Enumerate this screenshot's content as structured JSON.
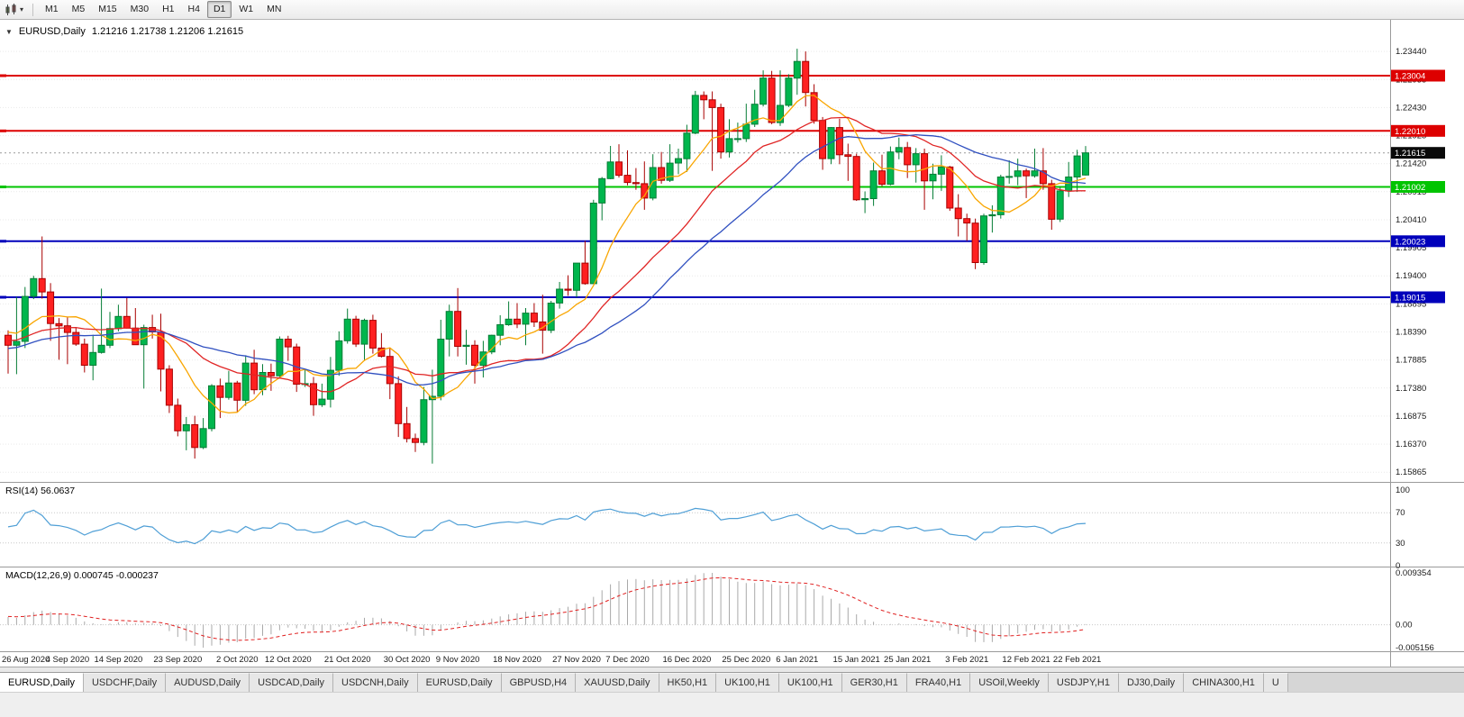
{
  "toolbar": {
    "chart_icon": "candlestick-chart",
    "dropdown_icon": "▾",
    "timeframes": [
      "M1",
      "M5",
      "M15",
      "M30",
      "H1",
      "H4",
      "D1",
      "W1",
      "MN"
    ],
    "active_timeframe": "D1"
  },
  "chart_header": {
    "menu_icon": "▼",
    "title": "EURUSD,Daily",
    "ohlc": "1.21216 1.21738 1.21206 1.21615"
  },
  "tab_bar": {
    "active_index": 0,
    "tabs": [
      "EURUSD,Daily",
      "USDCHF,Daily",
      "AUDUSD,Daily",
      "USDCAD,Daily",
      "USDCNH,Daily",
      "EURUSD,Daily",
      "GBPUSD,H4",
      "XAUUSD,Daily",
      "HK50,H1",
      "UK100,H1",
      "UK100,H1",
      "GER30,H1",
      "FRA40,H1",
      "USOil,Weekly",
      "USDJPY,H1",
      "DJ30,Daily",
      "CHINA300,H1",
      "U"
    ]
  },
  "chart_data": {
    "type": "candlestick",
    "title": "EURUSD,Daily",
    "ohlc_current": [
      1.21216,
      1.21738,
      1.21206,
      1.21615
    ],
    "ylim": [
      1.1569,
      1.2401
    ],
    "y_axis_labels": [
      "1.23440",
      "1.22935",
      "1.22430",
      "1.21925",
      "1.21420",
      "1.20915",
      "1.20410",
      "1.19905",
      "1.19400",
      "1.18895",
      "1.18390",
      "1.17885",
      "1.17380",
      "1.16875",
      "1.16370",
      "1.15865"
    ],
    "x_labels": [
      {
        "text": "26 Aug 2020",
        "bar": 0
      },
      {
        "text": "4 Sep 2020",
        "bar": 7
      },
      {
        "text": "14 Sep 2020",
        "bar": 13
      },
      {
        "text": "23 Sep 2020",
        "bar": 20
      },
      {
        "text": "2 Oct 2020",
        "bar": 27
      },
      {
        "text": "12 Oct 2020",
        "bar": 33
      },
      {
        "text": "21 Oct 2020",
        "bar": 40
      },
      {
        "text": "30 Oct 2020",
        "bar": 47
      },
      {
        "text": "9 Nov 2020",
        "bar": 53
      },
      {
        "text": "18 Nov 2020",
        "bar": 60
      },
      {
        "text": "27 Nov 2020",
        "bar": 67
      },
      {
        "text": "7 Dec 2020",
        "bar": 73
      },
      {
        "text": "16 Dec 2020",
        "bar": 80
      },
      {
        "text": "25 Dec 2020",
        "bar": 87
      },
      {
        "text": "6 Jan 2021",
        "bar": 93
      },
      {
        "text": "15 Jan 2021",
        "bar": 100
      },
      {
        "text": "25 Jan 2021",
        "bar": 106
      },
      {
        "text": "3 Feb 2021",
        "bar": 113
      },
      {
        "text": "12 Feb 2021",
        "bar": 120
      },
      {
        "text": "22 Feb 2021",
        "bar": 126
      }
    ],
    "candle_colors": {
      "up_fill": "#00b64d",
      "up_border": "#067d36",
      "down_fill": "#fe2020",
      "down_border": "#a80000"
    },
    "candles": [
      [
        1.1833,
        1.1842,
        1.1764,
        1.1815
      ],
      [
        1.1815,
        1.1902,
        1.1763,
        1.1822
      ],
      [
        1.1822,
        1.192,
        1.181,
        1.1903
      ],
      [
        1.1903,
        1.194,
        1.1898,
        1.1935
      ],
      [
        1.1935,
        1.2011,
        1.1899,
        1.1911
      ],
      [
        1.1911,
        1.1927,
        1.1823,
        1.1854
      ],
      [
        1.1854,
        1.1864,
        1.1789,
        1.185
      ],
      [
        1.185,
        1.1865,
        1.1781,
        1.1838
      ],
      [
        1.1838,
        1.1848,
        1.1814,
        1.1817
      ],
      [
        1.1817,
        1.1827,
        1.1766,
        1.1779
      ],
      [
        1.1779,
        1.1834,
        1.1752,
        1.1802
      ],
      [
        1.1802,
        1.1917,
        1.18,
        1.1815
      ],
      [
        1.1815,
        1.1875,
        1.181,
        1.1845
      ],
      [
        1.1845,
        1.1888,
        1.184,
        1.1867
      ],
      [
        1.1867,
        1.19,
        1.1845,
        1.1846
      ],
      [
        1.1846,
        1.1882,
        1.184,
        1.1816
      ],
      [
        1.1816,
        1.1852,
        1.1737,
        1.1847
      ],
      [
        1.1847,
        1.187,
        1.1827,
        1.1839
      ],
      [
        1.1839,
        1.1872,
        1.1732,
        1.1772
      ],
      [
        1.1772,
        1.1779,
        1.1693,
        1.1707
      ],
      [
        1.1707,
        1.1719,
        1.1651,
        1.1661
      ],
      [
        1.1661,
        1.1686,
        1.1626,
        1.1672
      ],
      [
        1.1672,
        1.1688,
        1.1611,
        1.1631
      ],
      [
        1.1631,
        1.1684,
        1.1628,
        1.1665
      ],
      [
        1.1665,
        1.1745,
        1.166,
        1.1742
      ],
      [
        1.1742,
        1.1755,
        1.1684,
        1.1721
      ],
      [
        1.1721,
        1.1769,
        1.1717,
        1.1747
      ],
      [
        1.1747,
        1.1751,
        1.1695,
        1.1716
      ],
      [
        1.1716,
        1.1797,
        1.1706,
        1.1783
      ],
      [
        1.1783,
        1.1807,
        1.1727,
        1.1735
      ],
      [
        1.1735,
        1.1781,
        1.1725,
        1.1766
      ],
      [
        1.1766,
        1.1782,
        1.1733,
        1.176
      ],
      [
        1.176,
        1.1831,
        1.1758,
        1.1826
      ],
      [
        1.1826,
        1.1832,
        1.1787,
        1.1812
      ],
      [
        1.1812,
        1.1818,
        1.1731,
        1.1745
      ],
      [
        1.1745,
        1.1772,
        1.174,
        1.1746
      ],
      [
        1.1746,
        1.1758,
        1.1688,
        1.1708
      ],
      [
        1.1708,
        1.1746,
        1.1704,
        1.1718
      ],
      [
        1.1718,
        1.1794,
        1.1703,
        1.177
      ],
      [
        1.177,
        1.184,
        1.176,
        1.1823
      ],
      [
        1.1823,
        1.1881,
        1.1818,
        1.1862
      ],
      [
        1.1862,
        1.1868,
        1.1812,
        1.1817
      ],
      [
        1.1817,
        1.1863,
        1.1787,
        1.186
      ],
      [
        1.186,
        1.187,
        1.18,
        1.181
      ],
      [
        1.181,
        1.1837,
        1.1793,
        1.1795
      ],
      [
        1.1795,
        1.1811,
        1.1718,
        1.1746
      ],
      [
        1.1746,
        1.1759,
        1.165,
        1.1674
      ],
      [
        1.1674,
        1.1704,
        1.164,
        1.1647
      ],
      [
        1.1647,
        1.1656,
        1.1623,
        1.164
      ],
      [
        1.164,
        1.174,
        1.1635,
        1.1717
      ],
      [
        1.1717,
        1.1771,
        1.1602,
        1.1723
      ],
      [
        1.1723,
        1.1861,
        1.1716,
        1.1826
      ],
      [
        1.1826,
        1.1888,
        1.1795,
        1.1876
      ],
      [
        1.1876,
        1.1918,
        1.1795,
        1.1813
      ],
      [
        1.1813,
        1.1843,
        1.178,
        1.1815
      ],
      [
        1.1815,
        1.1824,
        1.1746,
        1.1779
      ],
      [
        1.1779,
        1.1823,
        1.1757,
        1.1803
      ],
      [
        1.1803,
        1.1834,
        1.1799,
        1.1833
      ],
      [
        1.1833,
        1.1869,
        1.1815,
        1.1852
      ],
      [
        1.1852,
        1.1894,
        1.185,
        1.1862
      ],
      [
        1.1862,
        1.1891,
        1.1846,
        1.1853
      ],
      [
        1.1853,
        1.1882,
        1.1815,
        1.1873
      ],
      [
        1.1873,
        1.1891,
        1.1848,
        1.1857
      ],
      [
        1.1857,
        1.1906,
        1.18,
        1.1842
      ],
      [
        1.1842,
        1.1895,
        1.1837,
        1.1891
      ],
      [
        1.1891,
        1.1929,
        1.1881,
        1.1916
      ],
      [
        1.1916,
        1.1941,
        1.1904,
        1.1914
      ],
      [
        1.1914,
        1.1963,
        1.1901,
        1.1963
      ],
      [
        1.1963,
        1.2003,
        1.1924,
        1.1926
      ],
      [
        1.1926,
        1.2077,
        1.1926,
        1.2071
      ],
      [
        1.2071,
        1.2118,
        1.204,
        1.2115
      ],
      [
        1.2115,
        1.2174,
        1.2114,
        1.2145
      ],
      [
        1.2145,
        1.2177,
        1.2117,
        1.2121
      ],
      [
        1.2121,
        1.2166,
        1.2103,
        1.2108
      ],
      [
        1.2108,
        1.2134,
        1.2095,
        1.2106
      ],
      [
        1.2106,
        1.2146,
        1.2059,
        1.208
      ],
      [
        1.208,
        1.2159,
        1.2076,
        1.2135
      ],
      [
        1.2135,
        1.2163,
        1.2106,
        1.2112
      ],
      [
        1.2112,
        1.2177,
        1.2109,
        1.2143
      ],
      [
        1.2143,
        1.2169,
        1.2123,
        1.2151
      ],
      [
        1.2151,
        1.2212,
        1.2127,
        1.2197
      ],
      [
        1.2197,
        1.2273,
        1.2195,
        1.2265
      ],
      [
        1.2265,
        1.2272,
        1.2222,
        1.2257
      ],
      [
        1.2257,
        1.2272,
        1.2129,
        1.2243
      ],
      [
        1.2243,
        1.225,
        1.2151,
        1.2163
      ],
      [
        1.2163,
        1.2222,
        1.2153,
        1.2187
      ],
      [
        1.2187,
        1.2216,
        1.218,
        1.2187
      ],
      [
        1.2187,
        1.225,
        1.2181,
        1.2213
      ],
      [
        1.2213,
        1.2275,
        1.2208,
        1.2249
      ],
      [
        1.2249,
        1.231,
        1.2245,
        1.2296
      ],
      [
        1.2296,
        1.2309,
        1.2213,
        1.2216
      ],
      [
        1.2216,
        1.231,
        1.221,
        1.2247
      ],
      [
        1.2247,
        1.2303,
        1.2244,
        1.2296
      ],
      [
        1.2296,
        1.2349,
        1.2266,
        1.2326
      ],
      [
        1.2326,
        1.2344,
        1.2245,
        1.227
      ],
      [
        1.227,
        1.2285,
        1.2214,
        1.222
      ],
      [
        1.222,
        1.2226,
        1.2131,
        1.2151
      ],
      [
        1.2151,
        1.2208,
        1.2141,
        1.2207
      ],
      [
        1.2207,
        1.2223,
        1.2141,
        1.2158
      ],
      [
        1.2158,
        1.2178,
        1.2111,
        1.2155
      ],
      [
        1.2155,
        1.216,
        1.2075,
        1.2077
      ],
      [
        1.2077,
        1.2092,
        1.2053,
        1.2079
      ],
      [
        1.2079,
        1.2144,
        1.2066,
        1.2129
      ],
      [
        1.2129,
        1.2158,
        1.2101,
        1.2105
      ],
      [
        1.2105,
        1.2173,
        1.2103,
        1.2163
      ],
      [
        1.2163,
        1.2189,
        1.215,
        1.2171
      ],
      [
        1.2171,
        1.2181,
        1.2116,
        1.214
      ],
      [
        1.214,
        1.217,
        1.2108,
        1.216
      ],
      [
        1.216,
        1.2169,
        1.2059,
        1.2111
      ],
      [
        1.2111,
        1.2142,
        1.2078,
        1.2123
      ],
      [
        1.2123,
        1.2157,
        1.2093,
        1.2136
      ],
      [
        1.2136,
        1.2138,
        1.2057,
        1.2062
      ],
      [
        1.2062,
        1.2087,
        1.2011,
        1.2043
      ],
      [
        1.2043,
        1.2052,
        1.2003,
        1.2035
      ],
      [
        1.2035,
        1.2043,
        1.1952,
        1.1964
      ],
      [
        1.1964,
        1.2052,
        1.196,
        1.2048
      ],
      [
        1.2048,
        1.2067,
        1.2018,
        1.205
      ],
      [
        1.205,
        1.2122,
        1.2043,
        1.2118
      ],
      [
        1.2118,
        1.2148,
        1.2106,
        1.2119
      ],
      [
        1.2119,
        1.2151,
        1.2103,
        1.2129
      ],
      [
        1.2129,
        1.2133,
        1.208,
        1.212
      ],
      [
        1.212,
        1.2169,
        1.2117,
        1.2129
      ],
      [
        1.2129,
        1.217,
        1.2095,
        1.2106
      ],
      [
        1.2106,
        1.2113,
        1.2023,
        1.2042
      ],
      [
        1.2042,
        1.2101,
        1.2037,
        1.2093
      ],
      [
        1.2093,
        1.2145,
        1.2082,
        1.2118
      ],
      [
        1.2118,
        1.2167,
        1.2091,
        1.2156
      ],
      [
        1.21216,
        1.21738,
        1.21206,
        1.21615
      ]
    ],
    "overlays": {
      "horizontal_lines": [
        {
          "price": 1.23004,
          "label": "1.23004",
          "color": "#dd0000"
        },
        {
          "price": 1.2201,
          "label": "1.22010",
          "color": "#dd0000"
        },
        {
          "price": 1.21002,
          "label": "1.21002",
          "color": "#00c400"
        },
        {
          "price": 1.20023,
          "label": "1.20023",
          "color": "#0000bb"
        },
        {
          "price": 1.19015,
          "label": "1.19015",
          "color": "#0000bb"
        }
      ],
      "moving_averages": [
        {
          "period": 8,
          "color": "#f9a602"
        },
        {
          "period": 20,
          "color": "#e02525"
        },
        {
          "period": 30,
          "color": "#3050c0"
        }
      ],
      "current_price": 1.21615,
      "current_price_label": "1.21615",
      "current_price_tag_color": "#0a0a0a"
    },
    "indicators": [
      {
        "name": "RSI",
        "label": "RSI(14) 56.0637",
        "period": 14,
        "last_value": 56.0637,
        "levels": [
          "100",
          "70",
          "30",
          "0"
        ],
        "color": "#4f9fd6"
      },
      {
        "name": "MACD",
        "label": "MACD(12,26,9) 0.000745 -0.000237",
        "fast": 12,
        "slow": 26,
        "signal": 9,
        "values": [
          0.000745,
          -0.000237
        ],
        "axis_labels": [
          "0.009354",
          "0.00",
          "-0.005156"
        ],
        "histogram_color": "#a9a9a9",
        "signal_color": "#e02020"
      }
    ]
  }
}
